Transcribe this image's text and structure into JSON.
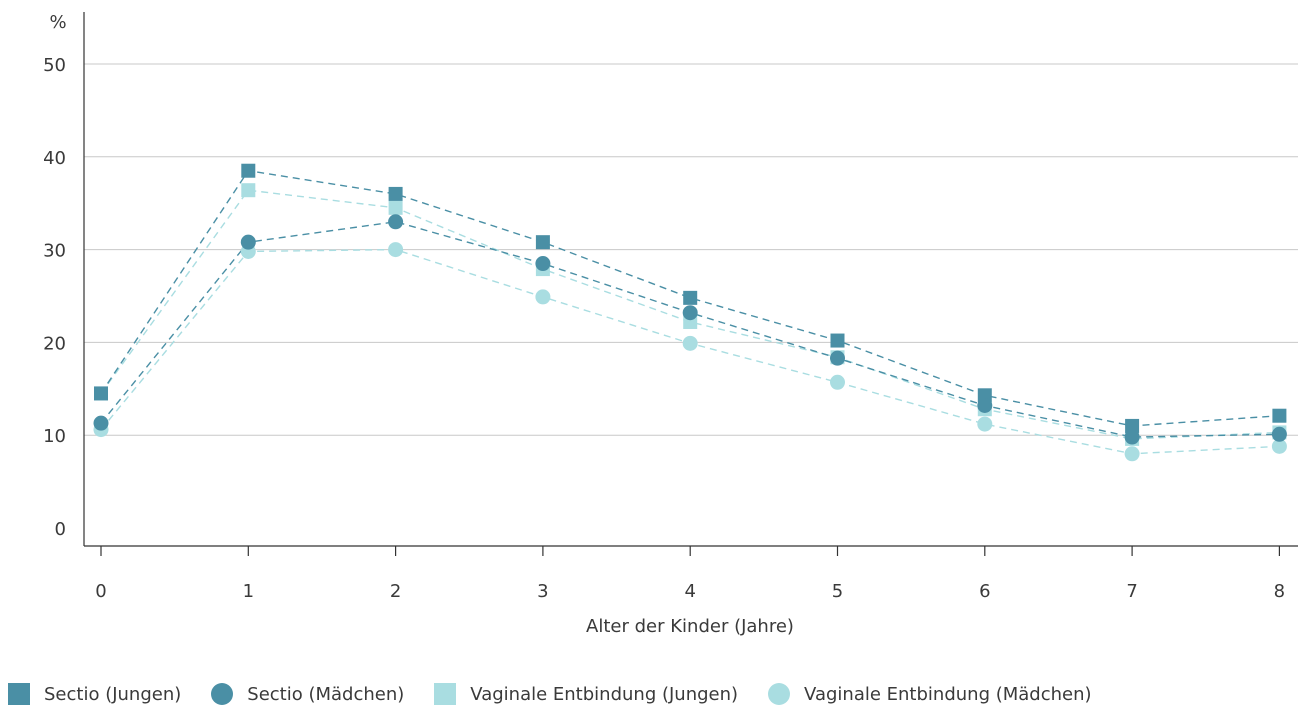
{
  "chart_data": {
    "type": "line",
    "y_unit": "%",
    "xlabel": "Alter der Kinder (Jahre)",
    "x": [
      0,
      1,
      2,
      3,
      4,
      5,
      6,
      7,
      8
    ],
    "ylim": [
      0,
      50
    ],
    "yticks": [
      0,
      10,
      20,
      30,
      40,
      50
    ],
    "grid": "horizontal",
    "legend_position": "bottom",
    "series": [
      {
        "name": "Sectio (Jungen)",
        "marker": "square",
        "color": "#4a8fa5",
        "values": [
          14.5,
          38.5,
          36.0,
          30.8,
          24.8,
          20.2,
          14.3,
          11.0,
          12.1
        ]
      },
      {
        "name": "Sectio (Mädchen)",
        "marker": "circle",
        "color": "#4a8fa5",
        "values": [
          11.3,
          30.8,
          33.0,
          28.5,
          23.2,
          18.3,
          13.2,
          9.8,
          10.1
        ]
      },
      {
        "name": "Vaginale Entbindung (Jungen)",
        "marker": "square",
        "color": "#a9dde1",
        "values": [
          14.5,
          36.4,
          34.5,
          27.9,
          22.2,
          18.4,
          12.8,
          9.6,
          10.3
        ]
      },
      {
        "name": "Vaginale Entbindung (Mädchen)",
        "marker": "circle",
        "color": "#a9dde1",
        "values": [
          10.6,
          29.8,
          30.0,
          24.9,
          19.9,
          15.7,
          11.2,
          8.0,
          8.8
        ]
      }
    ]
  }
}
